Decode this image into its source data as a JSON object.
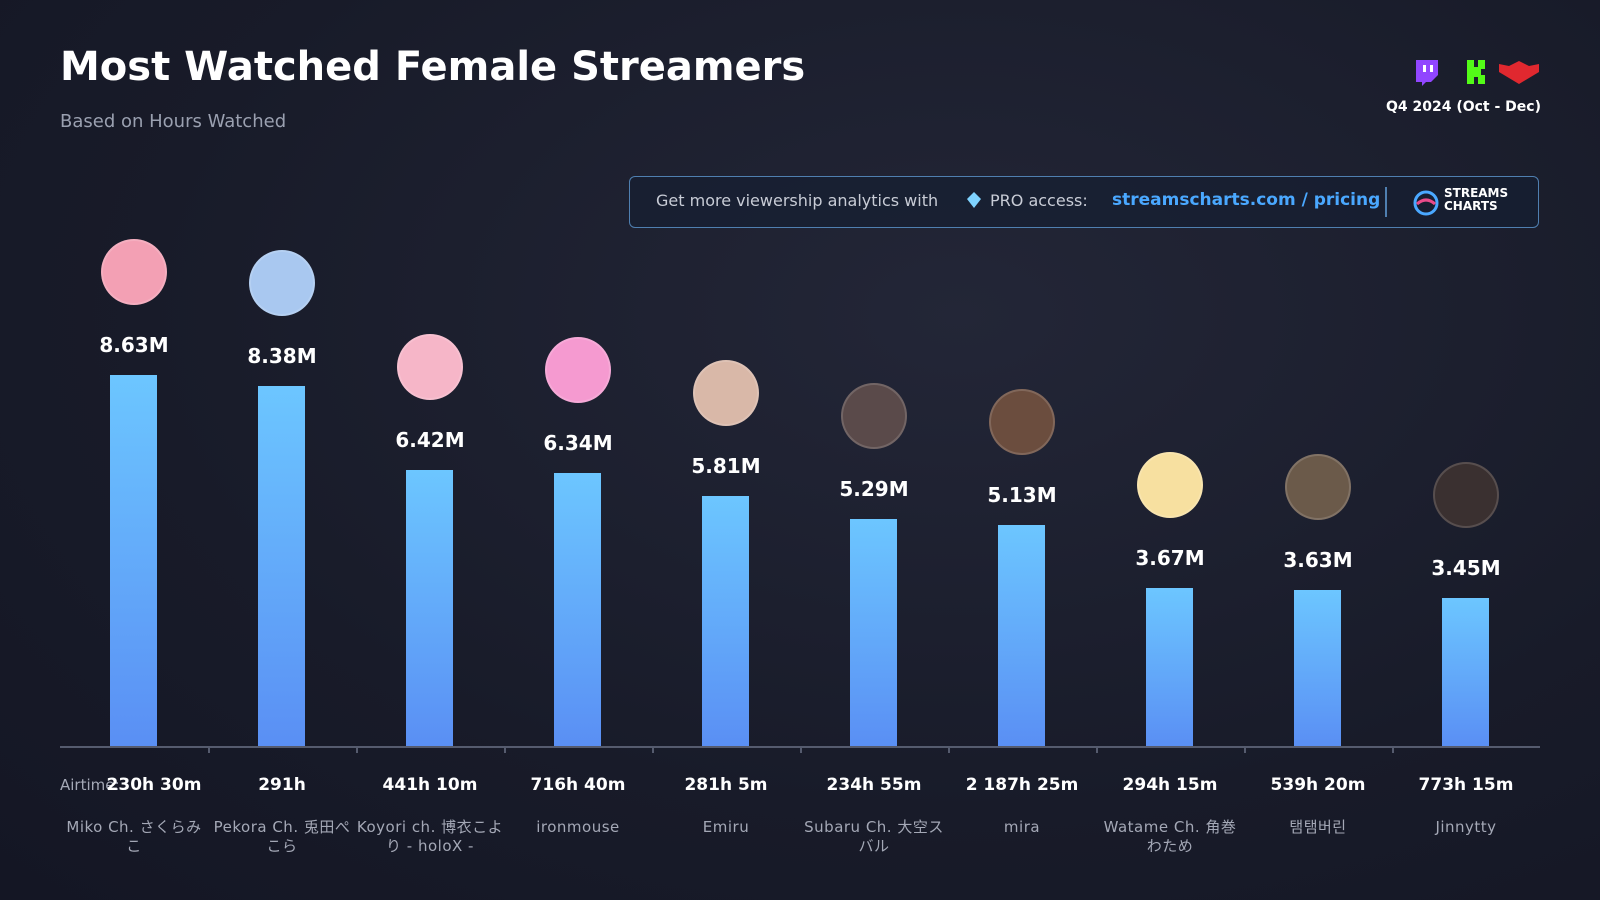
{
  "chart_data": {
    "type": "bar",
    "title": "Most Watched Female Streamers",
    "subtitle": "Based on Hours Watched",
    "period": "Q4 2024 (Oct - Dec)",
    "promo": {
      "text": "Get more viewership analytics with",
      "pro": "PRO access:",
      "link": "streamscharts.com / pricing",
      "brand": [
        "STREAMS",
        "CHARTS"
      ]
    },
    "categories": [
      "Miko Ch. さくらみこ",
      "Pekora Ch. 兎田ぺこら",
      "Koyori ch. 博衣こより - holoX -",
      "ironmouse",
      "Emiru",
      "Subaru Ch. 大空スバル",
      "mira",
      "Watame Ch. 角巻わため",
      "탬탬버린",
      "Jinnytty"
    ],
    "values": [
      8.63,
      8.38,
      6.42,
      6.34,
      5.81,
      5.29,
      5.13,
      3.67,
      3.63,
      3.45
    ],
    "value_labels": [
      "8.63M",
      "8.38M",
      "6.42M",
      "6.34M",
      "5.81M",
      "5.29M",
      "5.13M",
      "3.67M",
      "3.63M",
      "3.45M"
    ],
    "airtime_label": "Airtime:",
    "airtime": [
      "230h 30m",
      "291h",
      "441h 10m",
      "716h 40m",
      "281h 5m",
      "234h 55m",
      "2 187h 25m",
      "294h 15m",
      "539h 20m",
      "773h 15m"
    ],
    "color": [
      "#6cc6ff",
      "#5a8ff4"
    ],
    "ylim": [
      0,
      10
    ]
  }
}
